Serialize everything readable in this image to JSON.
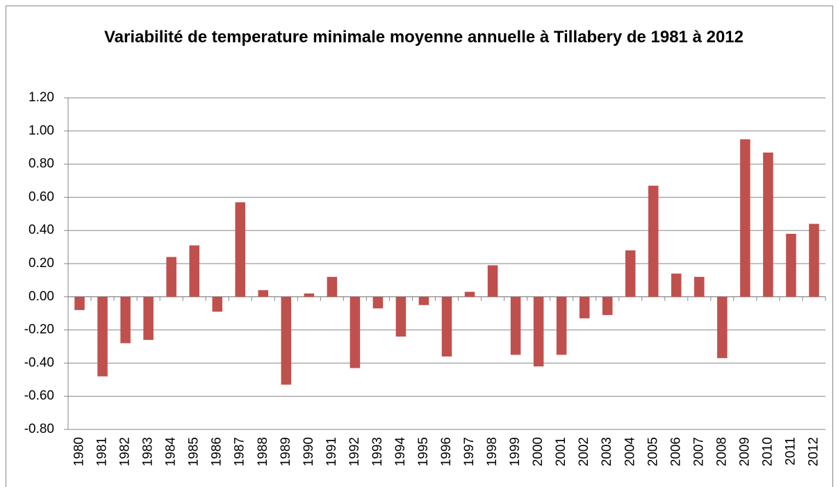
{
  "chart_data": {
    "type": "bar",
    "title": "Variabilité de temperature minimale moyenne annuelle à Tillabery de 1981 à 2012",
    "categories": [
      "1980",
      "1981",
      "1982",
      "1983",
      "1984",
      "1985",
      "1986",
      "1987",
      "1988",
      "1989",
      "1990",
      "1991",
      "1992",
      "1993",
      "1994",
      "1995",
      "1996",
      "1997",
      "1998",
      "1999",
      "2000",
      "2001",
      "2002",
      "2003",
      "2004",
      "2005",
      "2006",
      "2007",
      "2008",
      "2009",
      "2010",
      "2011",
      "2012"
    ],
    "values": [
      -0.08,
      -0.48,
      -0.28,
      -0.26,
      0.24,
      0.31,
      -0.09,
      0.57,
      0.04,
      -0.53,
      0.02,
      0.12,
      -0.43,
      -0.07,
      -0.24,
      -0.05,
      -0.36,
      0.03,
      0.19,
      -0.35,
      -0.42,
      -0.35,
      -0.13,
      -0.11,
      0.28,
      0.67,
      0.14,
      0.12,
      -0.37,
      0.95,
      0.87,
      0.38,
      0.44
    ],
    "color": "#c0504d",
    "ylim": [
      -0.8,
      1.2
    ],
    "yticks": [
      {
        "value": -0.8,
        "label": "-0.80"
      },
      {
        "value": -0.6,
        "label": "-0.60"
      },
      {
        "value": -0.4,
        "label": "-0.40"
      },
      {
        "value": -0.2,
        "label": "-0.20"
      },
      {
        "value": 0,
        "label": "0.00"
      },
      {
        "value": 0.2,
        "label": "0.20"
      },
      {
        "value": 0.4,
        "label": "0.40"
      },
      {
        "value": 0.6,
        "label": "0.60"
      },
      {
        "value": 0.8,
        "label": "0.80"
      },
      {
        "value": 1.0,
        "label": "1.00"
      },
      {
        "value": 1.2,
        "label": "1.20"
      }
    ],
    "grid": true
  }
}
